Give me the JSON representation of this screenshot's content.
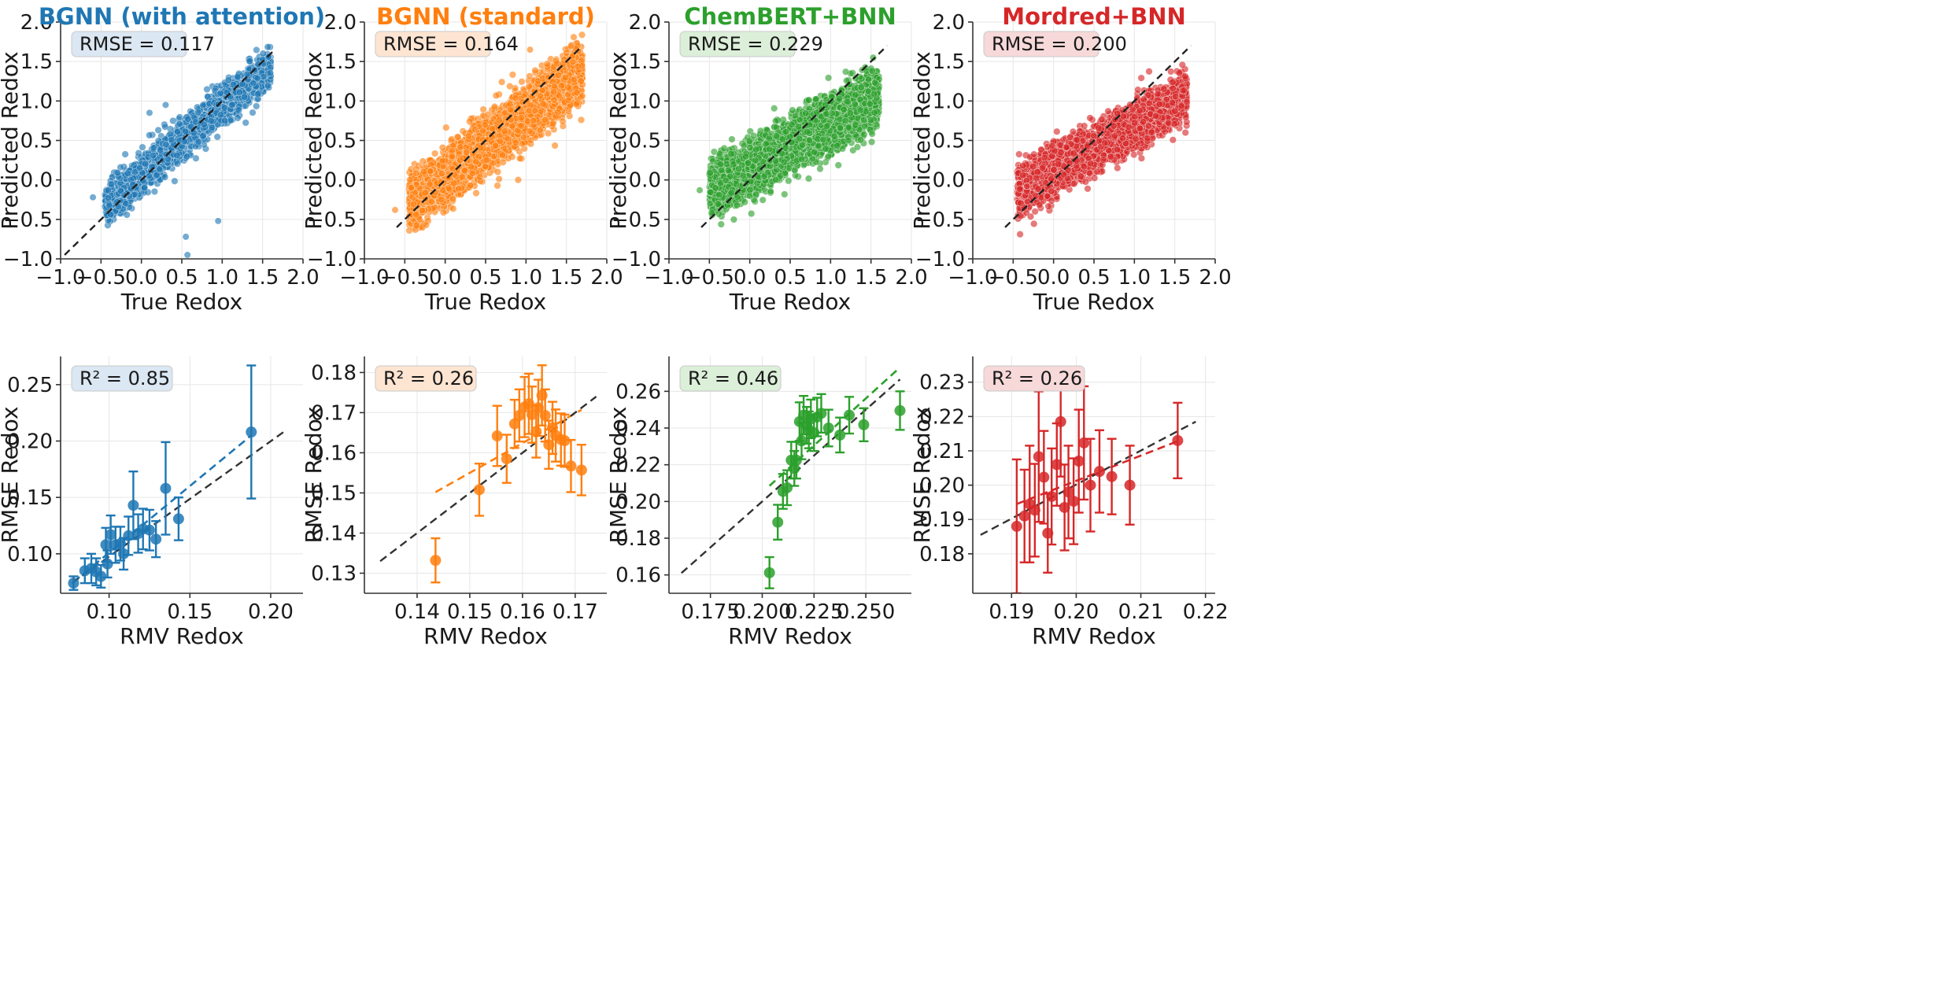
{
  "figure": {
    "top_row": {
      "xlabel": "True Redox",
      "ylabel": "Predicted Redox"
    },
    "bottom_row": {
      "xlabel": "RMV Redox",
      "ylabel": "RMSE Redox"
    }
  },
  "chart_data": [
    {
      "type": "scatter",
      "title": "BGNN (with attention)",
      "color": "#1f77b4",
      "badge_bg": "#dbe7f3",
      "annotation": "RMSE = 0.117",
      "xlabel": "True Redox",
      "ylabel": "Predicted Redox",
      "xlim": [
        -1.0,
        2.0
      ],
      "ylim": [
        -1.0,
        2.0
      ],
      "xticks": [
        -1.0,
        -0.5,
        0.0,
        0.5,
        1.0,
        1.5,
        2.0
      ],
      "yticks": [
        -1.0,
        -0.5,
        0.0,
        0.5,
        1.0,
        1.5,
        2.0
      ],
      "xtick_labels": [
        "−1.0",
        "−0.5",
        "0.0",
        "0.5",
        "1.0",
        "1.5",
        "2.0"
      ],
      "ytick_labels": [
        "−1.0",
        "−0.5",
        "0.0",
        "0.5",
        "1.0",
        "1.5",
        "2.0"
      ],
      "reference_line": {
        "x": [
          -0.95,
          1.65
        ],
        "y": [
          -0.95,
          1.65
        ]
      },
      "cloud": {
        "n": 1700,
        "x_range": [
          -0.45,
          1.6
        ],
        "slope": 0.86,
        "intercept": 0.07,
        "spread": 0.13
      },
      "outliers": [
        {
          "x": -0.6,
          "y": -0.22
        },
        {
          "x": 0.55,
          "y": -0.72
        },
        {
          "x": 0.57,
          "y": -0.95
        },
        {
          "x": 0.95,
          "y": -0.52
        },
        {
          "x": 0.3,
          "y": 0.95
        },
        {
          "x": 0.1,
          "y": 0.85
        }
      ]
    },
    {
      "type": "scatter",
      "title": "BGNN (standard)",
      "color": "#ff7f0e",
      "badge_bg": "#fde5d2",
      "annotation": "RMSE = 0.164",
      "xlabel": "True Redox",
      "ylabel": "Predicted Redox",
      "xlim": [
        -1.0,
        2.0
      ],
      "ylim": [
        -1.0,
        2.0
      ],
      "xticks": [
        -1.0,
        -0.5,
        0.0,
        0.5,
        1.0,
        1.5,
        2.0
      ],
      "yticks": [
        -1.0,
        -0.5,
        0.0,
        0.5,
        1.0,
        1.5,
        2.0
      ],
      "xtick_labels": [
        "−1.0",
        "−0.5",
        "0.0",
        "0.5",
        "1.0",
        "1.5",
        "2.0"
      ],
      "ytick_labels": [
        "−1.0",
        "−0.5",
        "0.0",
        "0.5",
        "1.0",
        "1.5",
        "2.0"
      ],
      "reference_line": {
        "x": [
          -0.6,
          1.7
        ],
        "y": [
          -0.6,
          1.7
        ]
      },
      "cloud": {
        "n": 3600,
        "x_range": [
          -0.45,
          1.7
        ],
        "slope": 0.78,
        "intercept": 0.05,
        "spread": 0.17
      },
      "outliers": [
        {
          "x": 1.05,
          "y": 1.65
        },
        {
          "x": -0.62,
          "y": -0.38
        }
      ]
    },
    {
      "type": "scatter",
      "title": "ChemBERT+BNN",
      "color": "#2ca02c",
      "badge_bg": "#dcefd9",
      "annotation": "RMSE = 0.229",
      "xlabel": "True Redox",
      "ylabel": "Predicted Redox",
      "xlim": [
        -1.0,
        2.0
      ],
      "ylim": [
        -1.0,
        2.0
      ],
      "xticks": [
        -1.0,
        -0.5,
        0.0,
        0.5,
        1.0,
        1.5,
        2.0
      ],
      "yticks": [
        -1.0,
        -0.5,
        0.0,
        0.5,
        1.0,
        1.5,
        2.0
      ],
      "xtick_labels": [
        "−1.0",
        "−0.5",
        "0.0",
        "0.5",
        "1.0",
        "1.5",
        "2.0"
      ],
      "ytick_labels": [
        "−1.0",
        "−0.5",
        "0.0",
        "0.5",
        "1.0",
        "1.5",
        "2.0"
      ],
      "reference_line": {
        "x": [
          -0.6,
          1.7
        ],
        "y": [
          -0.6,
          1.7
        ]
      },
      "cloud": {
        "n": 3600,
        "x_range": [
          -0.5,
          1.6
        ],
        "slope": 0.58,
        "intercept": 0.14,
        "spread": 0.17
      },
      "outliers": [
        {
          "x": -0.62,
          "y": -0.13
        }
      ]
    },
    {
      "type": "scatter",
      "title": "Mordred+BNN",
      "color": "#d62728",
      "badge_bg": "#f7d9d9",
      "annotation": "RMSE = 0.200",
      "xlabel": "True Redox",
      "ylabel": "Predicted Redox",
      "xlim": [
        -1.0,
        2.0
      ],
      "ylim": [
        -1.0,
        2.0
      ],
      "xticks": [
        -1.0,
        -0.5,
        0.0,
        0.5,
        1.0,
        1.5,
        2.0
      ],
      "yticks": [
        -1.0,
        -0.5,
        0.0,
        0.5,
        1.0,
        1.5,
        2.0
      ],
      "xtick_labels": [
        "−1.0",
        "−0.5",
        "0.0",
        "0.5",
        "1.0",
        "1.5",
        "2.0"
      ],
      "ytick_labels": [
        "−1.0",
        "−0.5",
        "0.0",
        "0.5",
        "1.0",
        "1.5",
        "2.0"
      ],
      "reference_line": {
        "x": [
          -0.6,
          1.7
        ],
        "y": [
          -0.6,
          1.7
        ]
      },
      "cloud": {
        "n": 3600,
        "x_range": [
          -0.45,
          1.65
        ],
        "slope": 0.57,
        "intercept": 0.12,
        "spread": 0.15
      },
      "outliers": [
        {
          "x": -0.33,
          "y": -0.08
        }
      ]
    },
    {
      "type": "errorbar",
      "color": "#1f77b4",
      "badge_bg": "#dbe7f3",
      "annotation": "R² = 0.85",
      "xlabel": "RMV Redox",
      "ylabel": "RMSE Redox",
      "xlim": [
        0.07,
        0.22
      ],
      "ylim": [
        0.065,
        0.275
      ],
      "xticks": [
        0.1,
        0.15,
        0.2
      ],
      "yticks": [
        0.1,
        0.15,
        0.2,
        0.25
      ],
      "xtick_labels": [
        "0.10",
        "0.15",
        "0.20"
      ],
      "ytick_labels": [
        "0.10",
        "0.15",
        "0.20",
        "0.25"
      ],
      "points": [
        {
          "x": 0.078,
          "y": 0.074,
          "err": 0.006
        },
        {
          "x": 0.085,
          "y": 0.085,
          "err": 0.011
        },
        {
          "x": 0.089,
          "y": 0.087,
          "err": 0.013
        },
        {
          "x": 0.092,
          "y": 0.084,
          "err": 0.012
        },
        {
          "x": 0.095,
          "y": 0.08,
          "err": 0.01
        },
        {
          "x": 0.098,
          "y": 0.108,
          "err": 0.015
        },
        {
          "x": 0.099,
          "y": 0.091,
          "err": 0.012
        },
        {
          "x": 0.101,
          "y": 0.117,
          "err": 0.017
        },
        {
          "x": 0.104,
          "y": 0.108,
          "err": 0.016
        },
        {
          "x": 0.107,
          "y": 0.109,
          "err": 0.015
        },
        {
          "x": 0.109,
          "y": 0.1,
          "err": 0.014
        },
        {
          "x": 0.112,
          "y": 0.116,
          "err": 0.017
        },
        {
          "x": 0.115,
          "y": 0.143,
          "err": 0.03
        },
        {
          "x": 0.118,
          "y": 0.118,
          "err": 0.017
        },
        {
          "x": 0.121,
          "y": 0.122,
          "err": 0.018
        },
        {
          "x": 0.125,
          "y": 0.121,
          "err": 0.018
        },
        {
          "x": 0.129,
          "y": 0.113,
          "err": 0.016
        },
        {
          "x": 0.135,
          "y": 0.158,
          "err": 0.041
        },
        {
          "x": 0.143,
          "y": 0.131,
          "err": 0.019
        },
        {
          "x": 0.188,
          "y": 0.208,
          "err": 0.059
        }
      ],
      "fit_line": {
        "x": [
          0.078,
          0.188
        ],
        "y": [
          0.075,
          0.205
        ]
      },
      "reference_line": {
        "x": [
          0.077,
          0.208
        ],
        "y": [
          0.074,
          0.208
        ]
      }
    },
    {
      "type": "errorbar",
      "color": "#ff7f0e",
      "badge_bg": "#fde5d2",
      "annotation": "R² = 0.26",
      "xlabel": "RMV Redox",
      "ylabel": "RMSE Redox",
      "xlim": [
        0.13,
        0.176
      ],
      "ylim": [
        0.125,
        0.184
      ],
      "xticks": [
        0.14,
        0.15,
        0.16,
        0.17
      ],
      "yticks": [
        0.13,
        0.14,
        0.15,
        0.16,
        0.17,
        0.18
      ],
      "xtick_labels": [
        "0.14",
        "0.15",
        "0.16",
        "0.17"
      ],
      "ytick_labels": [
        "0.13",
        "0.14",
        "0.15",
        "0.16",
        "0.17",
        "0.18"
      ],
      "points": [
        {
          "x": 0.1435,
          "y": 0.1332,
          "err": 0.0055
        },
        {
          "x": 0.1518,
          "y": 0.1508,
          "err": 0.0065
        },
        {
          "x": 0.1552,
          "y": 0.1642,
          "err": 0.0075
        },
        {
          "x": 0.157,
          "y": 0.1585,
          "err": 0.006
        },
        {
          "x": 0.1585,
          "y": 0.1672,
          "err": 0.006
        },
        {
          "x": 0.1594,
          "y": 0.1693,
          "err": 0.0065
        },
        {
          "x": 0.1604,
          "y": 0.1714,
          "err": 0.0075
        },
        {
          "x": 0.1612,
          "y": 0.1722,
          "err": 0.0075
        },
        {
          "x": 0.1618,
          "y": 0.1695,
          "err": 0.007
        },
        {
          "x": 0.1626,
          "y": 0.1653,
          "err": 0.0065
        },
        {
          "x": 0.163,
          "y": 0.1712,
          "err": 0.007
        },
        {
          "x": 0.1637,
          "y": 0.1743,
          "err": 0.0075
        },
        {
          "x": 0.1643,
          "y": 0.1693,
          "err": 0.0065
        },
        {
          "x": 0.165,
          "y": 0.162,
          "err": 0.006
        },
        {
          "x": 0.1657,
          "y": 0.1662,
          "err": 0.0065
        },
        {
          "x": 0.1663,
          "y": 0.1643,
          "err": 0.0065
        },
        {
          "x": 0.1673,
          "y": 0.1633,
          "err": 0.0065
        },
        {
          "x": 0.168,
          "y": 0.163,
          "err": 0.0065
        },
        {
          "x": 0.1692,
          "y": 0.1567,
          "err": 0.0065
        },
        {
          "x": 0.1712,
          "y": 0.1557,
          "err": 0.0063
        }
      ],
      "fit_line": {
        "x": [
          0.1435,
          0.1712
        ],
        "y": [
          0.1502,
          0.1707
        ]
      },
      "reference_line": {
        "x": [
          0.133,
          0.174
        ],
        "y": [
          0.133,
          0.174
        ]
      }
    },
    {
      "type": "errorbar",
      "color": "#2ca02c",
      "badge_bg": "#dcefd9",
      "annotation": "R² = 0.46",
      "xlabel": "RMV Redox",
      "ylabel": "RMSE Redox",
      "xlim": [
        0.155,
        0.272
      ],
      "ylim": [
        0.15,
        0.279
      ],
      "xticks": [
        0.175,
        0.2,
        0.225,
        0.25
      ],
      "yticks": [
        0.16,
        0.18,
        0.2,
        0.22,
        0.24,
        0.26
      ],
      "xtick_labels": [
        "0.175",
        "0.200",
        "0.225",
        "0.250"
      ],
      "ytick_labels": [
        "0.16",
        "0.18",
        "0.20",
        "0.22",
        "0.24",
        "0.26"
      ],
      "points": [
        {
          "x": 0.2035,
          "y": 0.1612,
          "err": 0.0085
        },
        {
          "x": 0.2075,
          "y": 0.1887,
          "err": 0.0095
        },
        {
          "x": 0.21,
          "y": 0.2055,
          "err": 0.0095
        },
        {
          "x": 0.212,
          "y": 0.2075,
          "err": 0.0095
        },
        {
          "x": 0.214,
          "y": 0.2225,
          "err": 0.01
        },
        {
          "x": 0.2155,
          "y": 0.218,
          "err": 0.0095
        },
        {
          "x": 0.2165,
          "y": 0.2225,
          "err": 0.01
        },
        {
          "x": 0.218,
          "y": 0.2435,
          "err": 0.0105
        },
        {
          "x": 0.219,
          "y": 0.233,
          "err": 0.01
        },
        {
          "x": 0.22,
          "y": 0.247,
          "err": 0.0105
        },
        {
          "x": 0.2215,
          "y": 0.2415,
          "err": 0.01
        },
        {
          "x": 0.2225,
          "y": 0.239,
          "err": 0.01
        },
        {
          "x": 0.2235,
          "y": 0.245,
          "err": 0.0105
        },
        {
          "x": 0.225,
          "y": 0.2375,
          "err": 0.01
        },
        {
          "x": 0.2265,
          "y": 0.246,
          "err": 0.0105
        },
        {
          "x": 0.2285,
          "y": 0.248,
          "err": 0.0105
        },
        {
          "x": 0.232,
          "y": 0.24,
          "err": 0.01
        },
        {
          "x": 0.2375,
          "y": 0.2362,
          "err": 0.0095
        },
        {
          "x": 0.242,
          "y": 0.247,
          "err": 0.01
        },
        {
          "x": 0.249,
          "y": 0.2418,
          "err": 0.009
        },
        {
          "x": 0.2665,
          "y": 0.2495,
          "err": 0.0105
        }
      ],
      "fit_line": {
        "x": [
          0.2035,
          0.2665
        ],
        "y": [
          0.2085,
          0.273
        ]
      },
      "reference_line": {
        "x": [
          0.161,
          0.2665
        ],
        "y": [
          0.161,
          0.2665
        ]
      }
    },
    {
      "type": "errorbar",
      "color": "#d62728",
      "badge_bg": "#f7d9d9",
      "annotation": "R² = 0.26",
      "xlabel": "RMV Redox",
      "ylabel": "RMSE Redox",
      "xlim": [
        0.184,
        0.2215
      ],
      "ylim": [
        0.1685,
        0.2375
      ],
      "xticks": [
        0.19,
        0.2,
        0.21,
        0.22
      ],
      "yticks": [
        0.18,
        0.19,
        0.2,
        0.21,
        0.22,
        0.23
      ],
      "xtick_labels": [
        "0.19",
        "0.20",
        "0.21",
        "0.22"
      ],
      "ytick_labels": [
        "0.18",
        "0.19",
        "0.20",
        "0.21",
        "0.22",
        "0.23"
      ],
      "points": [
        {
          "x": 0.1908,
          "y": 0.188,
          "err": 0.0195
        },
        {
          "x": 0.192,
          "y": 0.191,
          "err": 0.0135
        },
        {
          "x": 0.1928,
          "y": 0.1945,
          "err": 0.017
        },
        {
          "x": 0.1936,
          "y": 0.1927,
          "err": 0.0135
        },
        {
          "x": 0.1942,
          "y": 0.2083,
          "err": 0.019
        },
        {
          "x": 0.195,
          "y": 0.2023,
          "err": 0.0135
        },
        {
          "x": 0.1956,
          "y": 0.186,
          "err": 0.0115
        },
        {
          "x": 0.1962,
          "y": 0.1967,
          "err": 0.014
        },
        {
          "x": 0.197,
          "y": 0.206,
          "err": 0.012
        },
        {
          "x": 0.1976,
          "y": 0.2185,
          "err": 0.016
        },
        {
          "x": 0.1982,
          "y": 0.1935,
          "err": 0.0125
        },
        {
          "x": 0.1988,
          "y": 0.198,
          "err": 0.0135
        },
        {
          "x": 0.1996,
          "y": 0.1953,
          "err": 0.0125
        },
        {
          "x": 0.2004,
          "y": 0.207,
          "err": 0.015
        },
        {
          "x": 0.2012,
          "y": 0.2123,
          "err": 0.0165
        },
        {
          "x": 0.2022,
          "y": 0.2,
          "err": 0.0135
        },
        {
          "x": 0.2036,
          "y": 0.204,
          "err": 0.012
        },
        {
          "x": 0.2055,
          "y": 0.2025,
          "err": 0.011
        },
        {
          "x": 0.2083,
          "y": 0.2,
          "err": 0.0115
        },
        {
          "x": 0.2157,
          "y": 0.213,
          "err": 0.011
        }
      ],
      "fit_line": {
        "x": [
          0.1908,
          0.2157
        ],
        "y": [
          0.1945,
          0.2128
        ]
      },
      "reference_line": {
        "x": [
          0.1852,
          0.2185
        ],
        "y": [
          0.1855,
          0.2185
        ]
      }
    }
  ]
}
